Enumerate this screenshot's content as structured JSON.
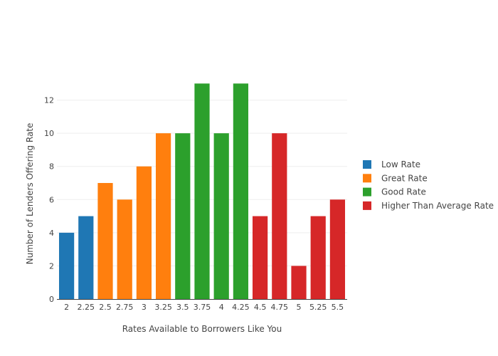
{
  "chart_data": {
    "type": "bar",
    "xlabel": "Rates Available to Borrowers Like You",
    "ylabel": "Number of Lenders Offering Rate",
    "ylim": [
      0,
      13.4
    ],
    "yticks": [
      0,
      2,
      4,
      6,
      8,
      10,
      12
    ],
    "grid": true,
    "legend_position": "right",
    "categories": [
      "2",
      "2.25",
      "2.5",
      "2.75",
      "3",
      "3.25",
      "3.5",
      "3.75",
      "4",
      "4.25",
      "4.5",
      "4.75",
      "5",
      "5.25",
      "5.5"
    ],
    "series": [
      {
        "name": "Low Rate",
        "color": "#1f77b4",
        "x": [
          "2",
          "2.25"
        ],
        "values": [
          4,
          5
        ]
      },
      {
        "name": "Great Rate",
        "color": "#ff7f0e",
        "x": [
          "2.5",
          "2.75",
          "3",
          "3.25"
        ],
        "values": [
          7,
          6,
          8,
          10
        ]
      },
      {
        "name": "Good Rate",
        "color": "#2ca02c",
        "x": [
          "3.5",
          "3.75",
          "4",
          "4.25"
        ],
        "values": [
          10,
          13,
          10,
          13
        ]
      },
      {
        "name": "Higher Than Average Rate",
        "color": "#d62728",
        "x": [
          "4.5",
          "4.75",
          "5",
          "5.25",
          "5.5"
        ],
        "values": [
          5,
          10,
          2,
          5,
          6
        ]
      }
    ]
  }
}
